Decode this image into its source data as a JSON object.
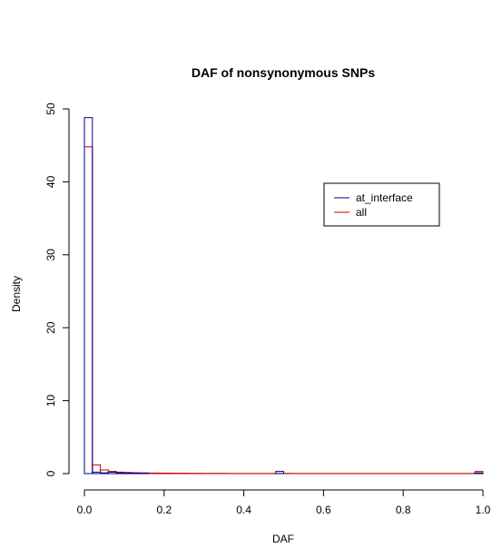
{
  "chart_data": {
    "type": "histogram",
    "title": "DAF of nonsynonymous SNPs",
    "xlabel": "DAF",
    "ylabel": "Density",
    "xlim": [
      0,
      1
    ],
    "ylim": [
      0,
      50
    ],
    "x_ticks": [
      "0.0",
      "0.2",
      "0.4",
      "0.6",
      "0.8",
      "1.0"
    ],
    "y_ticks": [
      "0",
      "10",
      "20",
      "30",
      "40",
      "50"
    ],
    "bin_edges": [
      0,
      0.02,
      0.04,
      0.06,
      0.08,
      0.1,
      0.12,
      0.14,
      0.16,
      0.18,
      0.2,
      0.22,
      0.24,
      0.26,
      0.28,
      0.3,
      0.32,
      0.34,
      0.36,
      0.38,
      0.4,
      0.42,
      0.44,
      0.46,
      0.48,
      0.5,
      0.52,
      0.54,
      0.56,
      0.58,
      0.6,
      0.62,
      0.64,
      0.66,
      0.68,
      0.7,
      0.72,
      0.74,
      0.76,
      0.78,
      0.8,
      0.82,
      0.84,
      0.86,
      0.88,
      0.9,
      0.92,
      0.94,
      0.96,
      0.98,
      1.0
    ],
    "series": [
      {
        "name": "at_interface",
        "color": "#00008B",
        "values": [
          48.8,
          0.2,
          0.1,
          0.2,
          0.1,
          0.1,
          0.05,
          0.05,
          0,
          0,
          0,
          0,
          0,
          0,
          0,
          0,
          0,
          0,
          0,
          0,
          0,
          0,
          0,
          0,
          0.3,
          0,
          0,
          0,
          0,
          0,
          0,
          0,
          0,
          0,
          0,
          0,
          0,
          0,
          0,
          0,
          0,
          0,
          0,
          0,
          0,
          0,
          0,
          0,
          0,
          0.1
        ]
      },
      {
        "name": "all",
        "color": "#CC0000",
        "values": [
          44.8,
          1.2,
          0.5,
          0.3,
          0.2,
          0.15,
          0.12,
          0.1,
          0.08,
          0.07,
          0.06,
          0.05,
          0.05,
          0.04,
          0.04,
          0.03,
          0.03,
          0.03,
          0.02,
          0.02,
          0.02,
          0.02,
          0.02,
          0.02,
          0.02,
          0.03,
          0.02,
          0.02,
          0.02,
          0.02,
          0.02,
          0.02,
          0.02,
          0.02,
          0.02,
          0.02,
          0.02,
          0.02,
          0.02,
          0.02,
          0.02,
          0.02,
          0.02,
          0.02,
          0.02,
          0.02,
          0.02,
          0.02,
          0.02,
          0.3
        ]
      }
    ],
    "legend": {
      "position": "top-right",
      "entries": [
        "at_interface",
        "all"
      ]
    }
  }
}
